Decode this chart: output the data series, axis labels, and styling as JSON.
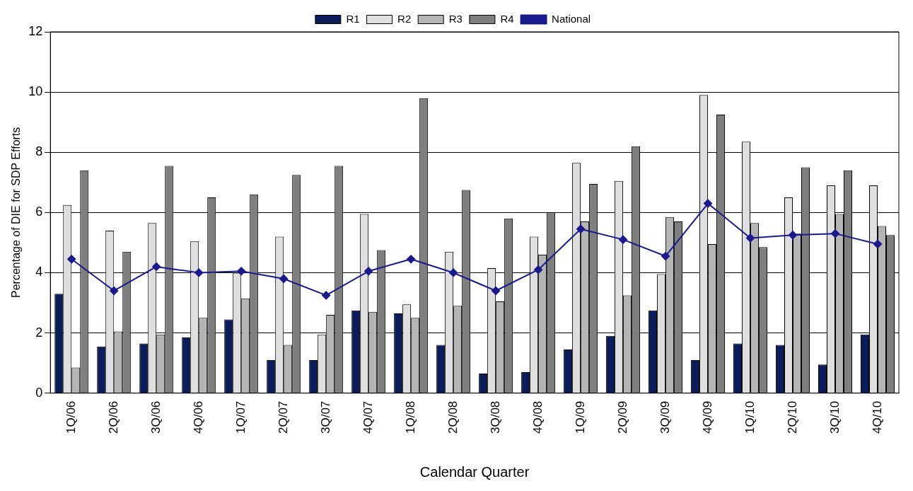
{
  "chart_data": {
    "type": "bar",
    "xlabel": "Calendar Quarter",
    "ylabel": "Percentage of DIE for SDP Efforts",
    "categories": [
      "1Q/06",
      "2Q/06",
      "3Q/06",
      "4Q/06",
      "1Q/07",
      "2Q/07",
      "3Q/07",
      "4Q/07",
      "1Q/08",
      "2Q/08",
      "3Q/08",
      "4Q/08",
      "1Q/09",
      "2Q/09",
      "3Q/09",
      "4Q/09",
      "1Q/10",
      "2Q/10",
      "3Q/10",
      "4Q/10"
    ],
    "series": [
      {
        "name": "R1",
        "color": "#0b1c5a",
        "values": [
          3.3,
          1.55,
          1.65,
          1.85,
          2.45,
          1.1,
          1.1,
          2.75,
          2.65,
          1.6,
          0.65,
          0.7,
          1.45,
          1.9,
          2.75,
          1.1,
          1.65,
          1.6,
          0.95,
          1.95
        ]
      },
      {
        "name": "R2",
        "color": "#dedede",
        "values": [
          6.25,
          5.4,
          5.65,
          5.05,
          4.0,
          5.2,
          1.95,
          5.95,
          2.95,
          4.7,
          4.15,
          5.2,
          7.65,
          7.05,
          3.95,
          9.9,
          8.35,
          6.5,
          6.9,
          6.9
        ]
      },
      {
        "name": "R3",
        "color": "#b4b4b4",
        "values": [
          0.85,
          2.05,
          1.95,
          2.5,
          3.15,
          1.6,
          2.6,
          2.7,
          2.5,
          2.9,
          3.05,
          4.6,
          5.7,
          3.25,
          5.85,
          4.95,
          5.65,
          5.3,
          5.95,
          5.55
        ]
      },
      {
        "name": "R4",
        "color": "#7f7f7f",
        "values": [
          7.4,
          4.7,
          7.55,
          6.5,
          6.6,
          7.25,
          7.55,
          4.75,
          9.8,
          6.75,
          5.8,
          6.0,
          6.95,
          8.2,
          5.7,
          9.25,
          4.85,
          7.5,
          7.4,
          5.25
        ]
      },
      {
        "name": "National",
        "type": "line",
        "color": "#1a1a8c",
        "marker": "diamond",
        "values": [
          4.45,
          3.4,
          4.2,
          4.0,
          4.05,
          3.8,
          3.25,
          4.05,
          4.45,
          4.0,
          3.4,
          4.1,
          5.45,
          5.1,
          4.55,
          6.3,
          5.15,
          5.25,
          5.3,
          4.95
        ]
      }
    ],
    "ylim": [
      0,
      12
    ],
    "yticks": [
      0,
      2,
      4,
      6,
      8,
      10,
      12
    ],
    "grid": "y",
    "legend": "top"
  }
}
